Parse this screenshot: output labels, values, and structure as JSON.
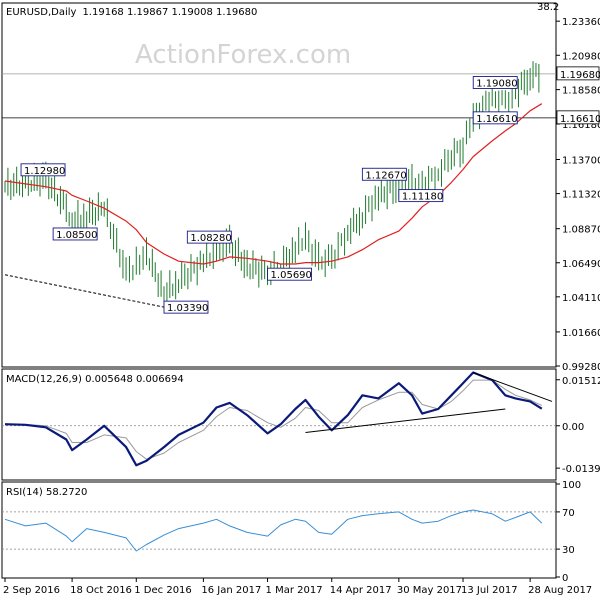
{
  "watermark": "ActionForex.com",
  "header": {
    "symbol": "EURUSD,Daily",
    "ohlc": "1.19168 1.19867 1.19008 1.19680",
    "corner_value": "38.2"
  },
  "x_axis": {
    "tick_labels": [
      "2 Sep 2016",
      "18 Oct 2016",
      "1 Dec 2016",
      "16 Jan 2017",
      "1 Mar 2017",
      "14 Apr 2017",
      "30 May 2017",
      "13 Jul 2017",
      "28 Aug 2017"
    ]
  },
  "chart_data": [
    {
      "type": "line",
      "panel": "price",
      "y_ticks": [
        "1.23360",
        "1.20980",
        "1.18580",
        "1.16180",
        "1.13700",
        "1.11320",
        "1.08870",
        "1.06490",
        "1.04110",
        "1.01660",
        "0.99280"
      ],
      "ylim": [
        0.9928,
        1.2456
      ],
      "current_price_label": "1.19680",
      "current_price": 1.1968,
      "level_label": "1.16610",
      "level": 1.1661,
      "x": [
        "2016-09-02",
        "2016-09-16",
        "2016-09-30",
        "2016-10-14",
        "2016-10-18",
        "2016-10-28",
        "2016-11-09",
        "2016-11-24",
        "2016-12-01",
        "2016-12-08",
        "2016-12-20",
        "2016-12-30",
        "2017-01-16",
        "2017-01-25",
        "2017-02-03",
        "2017-02-15",
        "2017-03-01",
        "2017-03-10",
        "2017-03-20",
        "2017-03-27",
        "2017-04-05",
        "2017-04-14",
        "2017-04-25",
        "2017-05-05",
        "2017-05-16",
        "2017-05-30",
        "2017-06-08",
        "2017-06-15",
        "2017-06-26",
        "2017-07-05",
        "2017-07-13",
        "2017-07-20",
        "2017-08-02",
        "2017-08-11",
        "2017-08-18",
        "2017-08-28",
        "2017-09-05"
      ],
      "series": [
        {
          "values": [
            1.118,
            1.121,
            1.123,
            1.103,
            1.094,
            1.098,
            1.103,
            1.058,
            1.063,
            1.072,
            1.043,
            1.052,
            1.066,
            1.073,
            1.078,
            1.063,
            1.058,
            1.063,
            1.074,
            1.082,
            1.066,
            1.067,
            1.087,
            1.098,
            1.112,
            1.118,
            1.121,
            1.119,
            1.127,
            1.14,
            1.146,
            1.166,
            1.18,
            1.176,
            1.184,
            1.196,
            1.197
          ]
        },
        {
          "values": [
            1.122,
            1.12,
            1.118,
            1.115,
            1.112,
            1.108,
            1.103,
            1.094,
            1.088,
            1.079,
            1.071,
            1.066,
            1.064,
            1.066,
            1.069,
            1.068,
            1.066,
            1.064,
            1.064,
            1.065,
            1.065,
            1.066,
            1.069,
            1.074,
            1.081,
            1.087,
            1.096,
            1.104,
            1.112,
            1.121,
            1.13,
            1.139,
            1.15,
            1.157,
            1.162,
            1.171,
            1.176
          ]
        }
      ],
      "annotations": [
        {
          "text": "1.12980",
          "x": "2016-09-13",
          "y": 1.1298
        },
        {
          "text": "1.08500",
          "x": "2016-10-05",
          "y": 1.085
        },
        {
          "text": "1.03390",
          "x": "2016-12-20",
          "y": 1.0339
        },
        {
          "text": "1.08280",
          "x": "2017-01-05",
          "y": 1.0828
        },
        {
          "text": "1.05690",
          "x": "2017-03-01",
          "y": 1.0569
        },
        {
          "text": "1.12670",
          "x": "2017-05-05",
          "y": 1.1267
        },
        {
          "text": "1.11180",
          "x": "2017-05-30",
          "y": 1.1118
        },
        {
          "text": "1.19080",
          "x": "2017-07-20",
          "y": 1.1908
        },
        {
          "text": "1.16610",
          "x": "2017-07-20",
          "y": 1.1661
        }
      ],
      "trendlines": [
        {
          "x": [
            "2016-09-02",
            "2016-12-20"
          ],
          "y": [
            1.0565,
            1.0339
          ]
        }
      ]
    },
    {
      "type": "line",
      "panel": "macd",
      "title": "MACD(12,26,9) 0.005648 0.006694",
      "y_ticks": [
        "0.01512",
        "0.00",
        "-0.01393"
      ],
      "ylim": [
        -0.0175,
        0.018
      ],
      "x": [
        "2016-09-02",
        "2016-09-16",
        "2016-09-30",
        "2016-10-14",
        "2016-10-18",
        "2016-10-28",
        "2016-11-09",
        "2016-11-24",
        "2016-12-01",
        "2016-12-08",
        "2016-12-20",
        "2016-12-30",
        "2017-01-16",
        "2017-01-25",
        "2017-02-03",
        "2017-02-15",
        "2017-03-01",
        "2017-03-10",
        "2017-03-20",
        "2017-03-27",
        "2017-04-05",
        "2017-04-14",
        "2017-04-25",
        "2017-05-05",
        "2017-05-16",
        "2017-05-30",
        "2017-06-08",
        "2017-06-15",
        "2017-06-26",
        "2017-07-05",
        "2017-07-13",
        "2017-07-20",
        "2017-08-02",
        "2017-08-11",
        "2017-08-18",
        "2017-08-28",
        "2017-09-05"
      ],
      "series": [
        {
          "values": [
            0.0005,
            0.0003,
            -0.0005,
            -0.0045,
            -0.008,
            -0.0045,
            0.0,
            -0.007,
            -0.013,
            -0.0115,
            -0.007,
            -0.003,
            0.001,
            0.006,
            0.0075,
            0.0035,
            -0.0025,
            0.0005,
            0.0055,
            0.0085,
            0.003,
            -0.0015,
            0.0035,
            0.01,
            0.009,
            0.014,
            0.01,
            0.004,
            0.0055,
            0.01,
            0.014,
            0.0175,
            0.015,
            0.01,
            0.009,
            0.008,
            0.0056
          ]
        },
        {
          "values": [
            0.0003,
            0.0004,
            0.0,
            -0.0025,
            -0.0055,
            -0.0055,
            -0.003,
            -0.004,
            -0.0085,
            -0.011,
            -0.009,
            -0.0055,
            -0.0015,
            0.003,
            0.006,
            0.005,
            0.001,
            -0.0005,
            0.0025,
            0.006,
            0.005,
            0.001,
            0.001,
            0.006,
            0.0085,
            0.011,
            0.011,
            0.007,
            0.0055,
            0.008,
            0.0115,
            0.015,
            0.015,
            0.012,
            0.01,
            0.0085,
            0.0067
          ]
        }
      ],
      "trendlines": [
        {
          "x": [
            "2017-03-27",
            "2017-08-11"
          ],
          "y": [
            -0.0022,
            0.0055
          ]
        },
        {
          "x": [
            "2017-07-20",
            "2017-09-12"
          ],
          "y": [
            0.0175,
            0.008
          ]
        }
      ]
    },
    {
      "type": "line",
      "panel": "rsi",
      "title": "RSI(14) 58.2720",
      "y_ticks": [
        "100",
        "70",
        "30",
        "0"
      ],
      "ylim": [
        0,
        100
      ],
      "x": [
        "2016-09-02",
        "2016-09-16",
        "2016-09-30",
        "2016-10-14",
        "2016-10-18",
        "2016-10-28",
        "2016-11-09",
        "2016-11-24",
        "2016-12-01",
        "2016-12-08",
        "2016-12-20",
        "2016-12-30",
        "2017-01-16",
        "2017-01-25",
        "2017-02-03",
        "2017-02-15",
        "2017-03-01",
        "2017-03-10",
        "2017-03-20",
        "2017-03-27",
        "2017-04-05",
        "2017-04-14",
        "2017-04-25",
        "2017-05-05",
        "2017-05-16",
        "2017-05-30",
        "2017-06-08",
        "2017-06-15",
        "2017-06-26",
        "2017-07-05",
        "2017-07-13",
        "2017-07-20",
        "2017-08-02",
        "2017-08-11",
        "2017-08-18",
        "2017-08-28",
        "2017-09-05"
      ],
      "series": [
        {
          "values": [
            62,
            55,
            58,
            44,
            38,
            52,
            48,
            42,
            28,
            35,
            45,
            52,
            58,
            62,
            55,
            48,
            44,
            56,
            62,
            60,
            48,
            46,
            62,
            66,
            68,
            70,
            62,
            58,
            60,
            66,
            70,
            72,
            68,
            60,
            64,
            70,
            58
          ]
        }
      ]
    }
  ]
}
